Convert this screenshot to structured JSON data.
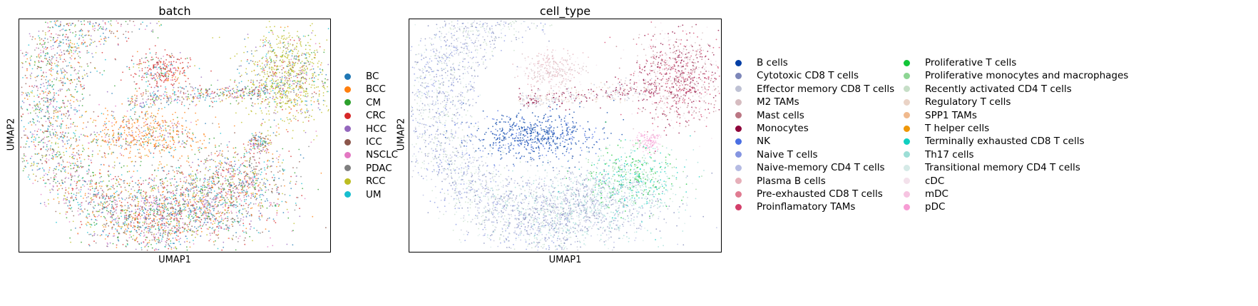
{
  "chart_data": [
    {
      "type": "scatter",
      "title": "batch",
      "xlabel": "UMAP1",
      "ylabel": "UMAP2",
      "legend_placement": "right",
      "categories": [
        "BC",
        "BCC",
        "CM",
        "CRC",
        "HCC",
        "ICC",
        "NSCLC",
        "PDAC",
        "RCC",
        "UM"
      ],
      "colors": [
        "#1f77b4",
        "#ff7f0e",
        "#2ca02c",
        "#d62728",
        "#9467bd",
        "#8c564b",
        "#e377c2",
        "#7f7f7f",
        "#bcbd22",
        "#17becf"
      ]
    },
    {
      "type": "scatter",
      "title": "cell_type",
      "xlabel": "UMAP1",
      "ylabel": "UMAP2",
      "legend_placement": "right",
      "categories": [
        "B cells",
        "Cytotoxic CD8 T cells",
        "Effector memory CD8 T cells",
        "M2 TAMs",
        "Mast cells",
        "Monocytes",
        "NK",
        "Naive T cells",
        "Naive-memory CD4 T cells",
        "Plasma B cells",
        "Pre-exhausted CD8 T cells",
        "Proinflamatory TAMs",
        "Proliferative T cells",
        "Proliferative monocytes and macrophages",
        "Recently activated CD4 T cells",
        "Regulatory T cells",
        "SPP1 TAMs",
        "T helper cells",
        "Terminally exhausted CD8 T cells",
        "Th17 cells",
        "Transitional memory CD4 T cells",
        "cDC",
        "mDC",
        "pDC"
      ],
      "colors": [
        "#023fa5",
        "#7d87b9",
        "#bec1d4",
        "#d6bcc0",
        "#bb7784",
        "#8e063b",
        "#4a6fe3",
        "#8595e1",
        "#b5bbe3",
        "#e6afb9",
        "#e07b91",
        "#d33f6a",
        "#11c638",
        "#8dd593",
        "#c6dec7",
        "#ead3c6",
        "#f0b98d",
        "#ef9708",
        "#0fcfc0",
        "#9cded6",
        "#d5eae7",
        "#f3e1eb",
        "#f6c4e1",
        "#f79cd4"
      ]
    }
  ]
}
